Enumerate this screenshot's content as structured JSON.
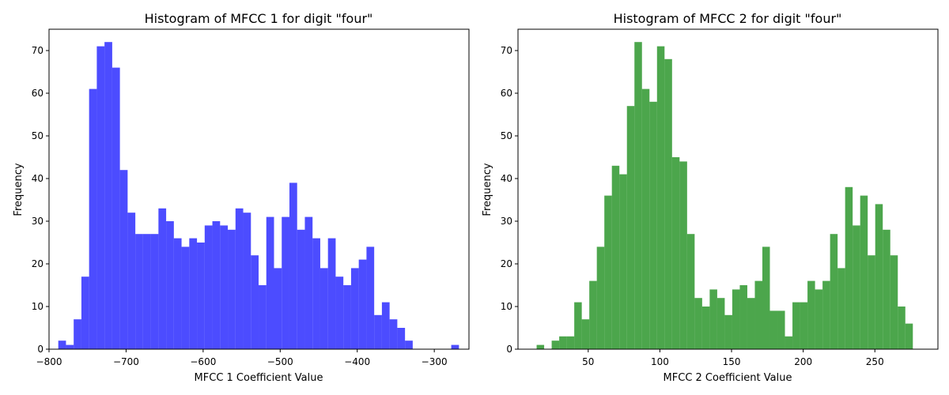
{
  "figure": {
    "background": "#ffffff"
  },
  "chart_data": [
    {
      "type": "bar",
      "title": "Histogram of MFCC 1 for digit \"four\"",
      "xlabel": "MFCC 1 Coefficient Value",
      "ylabel": "Frequency",
      "color": "#0000ff",
      "opacity": 0.7,
      "xlim": [
        -800,
        -255
      ],
      "ylim": [
        0,
        75
      ],
      "xticks": [
        -800,
        -700,
        -600,
        -500,
        -400,
        -300
      ],
      "xtick_labels": [
        "−800",
        "−700",
        "−600",
        "−500",
        "−400",
        "−300"
      ],
      "yticks": [
        0,
        10,
        20,
        30,
        40,
        50,
        60,
        70
      ],
      "ytick_labels": [
        "0",
        "10",
        "20",
        "30",
        "40",
        "50",
        "60",
        "70"
      ],
      "bin_start": -788,
      "bin_width": 10,
      "values": [
        2,
        1,
        7,
        17,
        61,
        71,
        72,
        66,
        42,
        32,
        27,
        27,
        27,
        33,
        30,
        26,
        24,
        26,
        25,
        29,
        30,
        29,
        28,
        33,
        32,
        22,
        15,
        31,
        19,
        31,
        39,
        28,
        31,
        26,
        19,
        26,
        17,
        15,
        19,
        21,
        24,
        8,
        11,
        7,
        5,
        2,
        0,
        0,
        0,
        0,
        0,
        1
      ]
    },
    {
      "type": "bar",
      "title": "Histogram of MFCC 2 for digit \"four\"",
      "xlabel": "MFCC 2 Coefficient Value",
      "ylabel": "Frequency",
      "color": "#008000",
      "opacity": 0.7,
      "xlim": [
        1,
        294
      ],
      "ylim": [
        0,
        75
      ],
      "xticks": [
        50,
        100,
        150,
        200,
        250
      ],
      "xtick_labels": [
        "50",
        "100",
        "150",
        "200",
        "250"
      ],
      "yticks": [
        0,
        10,
        20,
        30,
        40,
        50,
        60,
        70
      ],
      "ytick_labels": [
        "0",
        "10",
        "20",
        "30",
        "40",
        "50",
        "60",
        "70"
      ],
      "bin_start": 14,
      "bin_width": 5.25,
      "values": [
        1,
        0,
        2,
        3,
        3,
        11,
        7,
        16,
        24,
        36,
        43,
        41,
        57,
        72,
        61,
        58,
        71,
        68,
        45,
        44,
        27,
        12,
        10,
        14,
        12,
        8,
        14,
        15,
        12,
        16,
        24,
        9,
        9,
        3,
        11,
        11,
        16,
        14,
        16,
        27,
        19,
        38,
        29,
        36,
        22,
        34,
        28,
        22,
        10,
        6
      ]
    }
  ]
}
